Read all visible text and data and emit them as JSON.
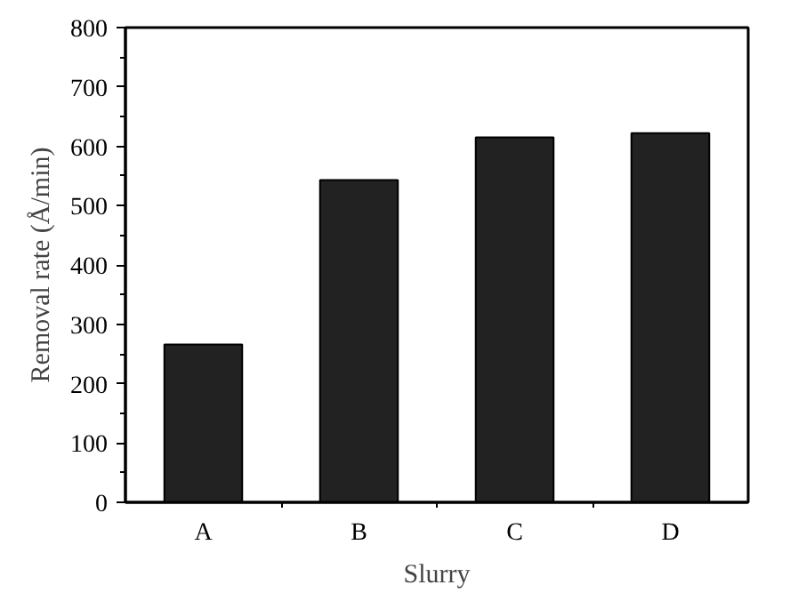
{
  "chart_data": {
    "type": "bar",
    "xlabel": "Slurry",
    "ylabel": "Removal rate (Å/min)",
    "categories": [
      "A",
      "B",
      "C",
      "D"
    ],
    "values": [
      266,
      543,
      615,
      622
    ],
    "color": "#222222",
    "ylim": [
      0,
      800
    ],
    "yticks": [
      0,
      100,
      200,
      300,
      400,
      500,
      600,
      700,
      800
    ],
    "grid": false
  }
}
